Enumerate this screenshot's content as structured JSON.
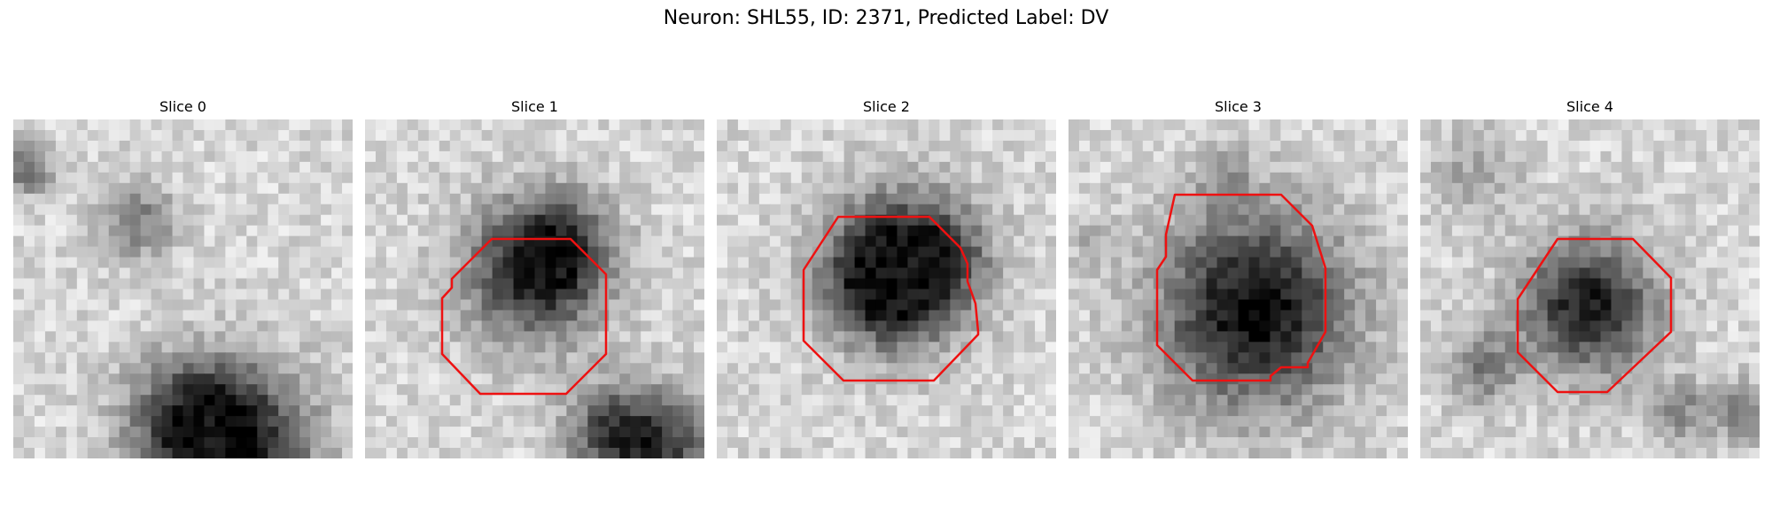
{
  "figure": {
    "title": "Neuron: SHL55, ID: 2371, Predicted Label: DV"
  },
  "panels": [
    {
      "title": "Slice 0",
      "has_outline": false
    },
    {
      "title": "Slice 1",
      "has_outline": true
    },
    {
      "title": "Slice 2",
      "has_outline": true
    },
    {
      "title": "Slice 3",
      "has_outline": true
    },
    {
      "title": "Slice 4",
      "has_outline": true
    }
  ],
  "colors": {
    "outline": "#ee1111",
    "background": "#ffffff"
  }
}
